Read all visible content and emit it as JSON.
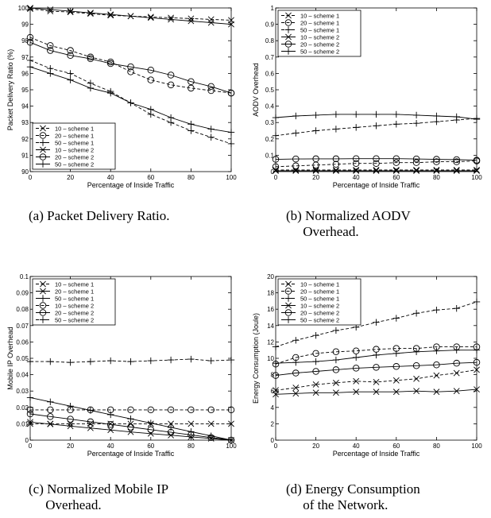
{
  "chart_data": [
    {
      "type": "line",
      "panel": "a",
      "caption": "(a) Packet Delivery Ratio.",
      "xlabel": "Percentage of Inside Traffic",
      "ylabel": "Packet Delivery Ratio (%)",
      "xlim": [
        0,
        100
      ],
      "ylim": [
        90,
        100
      ],
      "xticks": [
        "0",
        "20",
        "40",
        "60",
        "80",
        "100"
      ],
      "yticks": [
        "90",
        "91",
        "92",
        "93",
        "94",
        "95",
        "96",
        "97",
        "98",
        "99",
        "100"
      ],
      "legend_position": "bottom-left",
      "x": [
        0,
        10,
        20,
        30,
        40,
        50,
        60,
        70,
        80,
        90,
        100
      ],
      "series": [
        {
          "name": "10 – scheme 1",
          "marker": "x",
          "dash": true,
          "values": [
            99.95,
            99.8,
            99.75,
            99.65,
            99.55,
            99.5,
            99.45,
            99.4,
            99.35,
            99.3,
            99.25
          ]
        },
        {
          "name": "20 – scheme 1",
          "marker": "o",
          "dash": true,
          "values": [
            98.2,
            97.7,
            97.4,
            97.0,
            96.7,
            96.1,
            95.6,
            95.3,
            95.1,
            94.95,
            94.8
          ]
        },
        {
          "name": "50 – scheme 1",
          "marker": "+",
          "dash": true,
          "values": [
            96.8,
            96.3,
            96.0,
            95.4,
            94.9,
            94.2,
            93.5,
            93.0,
            92.5,
            92.1,
            91.7
          ]
        },
        {
          "name": "10 – scheme 2",
          "marker": "x",
          "dash": false,
          "values": [
            100.0,
            99.9,
            99.8,
            99.7,
            99.6,
            99.5,
            99.4,
            99.3,
            99.2,
            99.1,
            99.0
          ]
        },
        {
          "name": "20 – scheme 2",
          "marker": "o",
          "dash": false,
          "values": [
            97.9,
            97.4,
            97.1,
            96.9,
            96.6,
            96.4,
            96.2,
            95.9,
            95.5,
            95.2,
            94.8
          ]
        },
        {
          "name": "50 – scheme 2",
          "marker": "+",
          "dash": false,
          "values": [
            96.4,
            96.0,
            95.6,
            95.1,
            94.8,
            94.2,
            93.8,
            93.3,
            92.9,
            92.6,
            92.4
          ]
        }
      ]
    },
    {
      "type": "line",
      "panel": "b",
      "caption": "(b) Normalized AODV\n     Overhead.",
      "xlabel": "Percentage of Inside Traffic",
      "ylabel": "AODV Overhead",
      "xlim": [
        0,
        100
      ],
      "ylim": [
        0,
        1
      ],
      "xticks": [
        "0",
        "20",
        "40",
        "60",
        "80",
        "100"
      ],
      "yticks": [
        "0",
        "0.1",
        "0.2",
        "0.3",
        "0.4",
        "0.5",
        "0.6",
        "0.7",
        "0.8",
        "0.9",
        "1"
      ],
      "legend_position": "top-left",
      "x": [
        0,
        10,
        20,
        30,
        40,
        50,
        60,
        70,
        80,
        90,
        100
      ],
      "series": [
        {
          "name": "10 – scheme 1",
          "marker": "x",
          "dash": true,
          "values": [
            0.01,
            0.01,
            0.01,
            0.01,
            0.01,
            0.01,
            0.01,
            0.01,
            0.01,
            0.01,
            0.01
          ]
        },
        {
          "name": "20 – scheme 1",
          "marker": "o",
          "dash": true,
          "values": [
            0.03,
            0.035,
            0.04,
            0.045,
            0.05,
            0.05,
            0.055,
            0.055,
            0.06,
            0.06,
            0.065
          ]
        },
        {
          "name": "50 – scheme 1",
          "marker": "+",
          "dash": true,
          "values": [
            0.22,
            0.235,
            0.25,
            0.26,
            0.27,
            0.28,
            0.29,
            0.295,
            0.305,
            0.315,
            0.325
          ]
        },
        {
          "name": "10 – scheme 2",
          "marker": "x",
          "dash": false,
          "values": [
            0.005,
            0.005,
            0.005,
            0.005,
            0.005,
            0.005,
            0.005,
            0.005,
            0.005,
            0.005,
            0.005
          ]
        },
        {
          "name": "20 – scheme 2",
          "marker": "o",
          "dash": false,
          "values": [
            0.075,
            0.077,
            0.078,
            0.078,
            0.079,
            0.079,
            0.079,
            0.077,
            0.075,
            0.073,
            0.07
          ]
        },
        {
          "name": "50 – scheme 2",
          "marker": "+",
          "dash": false,
          "values": [
            0.33,
            0.34,
            0.345,
            0.35,
            0.35,
            0.35,
            0.35,
            0.345,
            0.34,
            0.335,
            0.32
          ]
        }
      ]
    },
    {
      "type": "line",
      "panel": "c",
      "caption": "(c) Normalized Mobile IP\n     Overhead.",
      "xlabel": "Percentage of Inside Traffic",
      "ylabel": "Mobile IP Overhead",
      "xlim": [
        0,
        100
      ],
      "ylim": [
        0,
        0.1
      ],
      "xticks": [
        "0",
        "20",
        "40",
        "60",
        "80",
        "100"
      ],
      "yticks": [
        "0",
        "0.01",
        "0.02",
        "0.03",
        "0.04",
        "0.05",
        "0.06",
        "0.07",
        "0.08",
        "0.09",
        "0.1"
      ],
      "legend_position": "top-left",
      "x": [
        0,
        10,
        20,
        30,
        40,
        50,
        60,
        70,
        80,
        90,
        100
      ],
      "series": [
        {
          "name": "10 – scheme 1",
          "marker": "x",
          "dash": true,
          "values": [
            0.01,
            0.01,
            0.01,
            0.01,
            0.01,
            0.01,
            0.01,
            0.01,
            0.01,
            0.01,
            0.01
          ]
        },
        {
          "name": "20 – scheme 1",
          "marker": "x",
          "dash": false,
          "values": [
            0.011,
            0.0098,
            0.0086,
            0.0074,
            0.0062,
            0.005,
            0.004,
            0.003,
            0.002,
            0.001,
            0.0
          ]
        },
        {
          "name": "50 – scheme 1",
          "marker": "+",
          "dash": false,
          "values": [
            0.026,
            0.0234,
            0.0208,
            0.0182,
            0.0156,
            0.013,
            0.0104,
            0.0078,
            0.0052,
            0.0026,
            0.0
          ]
        },
        {
          "name": "10 – scheme 2",
          "marker": "o",
          "dash": true,
          "values": [
            0.0185,
            0.0185,
            0.0185,
            0.0185,
            0.0185,
            0.0185,
            0.0185,
            0.0185,
            0.0185,
            0.0185,
            0.0185
          ]
        },
        {
          "name": "20 – scheme 2",
          "marker": "o",
          "dash": false,
          "values": [
            0.016,
            0.0144,
            0.0128,
            0.0112,
            0.0096,
            0.008,
            0.0064,
            0.0048,
            0.0032,
            0.0016,
            0.0
          ]
        },
        {
          "name": "50 – scheme 2",
          "marker": "+",
          "dash": true,
          "values": [
            0.048,
            0.048,
            0.0475,
            0.048,
            0.0485,
            0.048,
            0.0485,
            0.049,
            0.0495,
            0.0485,
            0.049
          ]
        }
      ]
    },
    {
      "type": "line",
      "panel": "d",
      "caption": "(d) Energy Consumption\n     of the Network.",
      "xlabel": "Percentage of Inside Traffic",
      "ylabel": "Energy Consumption (Joule)",
      "xlim": [
        0,
        100
      ],
      "ylim": [
        0,
        20
      ],
      "xticks": [
        "0",
        "20",
        "40",
        "60",
        "80",
        "100"
      ],
      "yticks": [
        "0",
        "2",
        "4",
        "6",
        "8",
        "10",
        "12",
        "14",
        "16",
        "18",
        "20"
      ],
      "legend_position": "top-left",
      "x": [
        0,
        10,
        20,
        30,
        40,
        50,
        60,
        70,
        80,
        90,
        100
      ],
      "series": [
        {
          "name": "10 – scheme 1",
          "marker": "x",
          "dash": true,
          "values": [
            6.1,
            6.4,
            6.8,
            7.0,
            7.2,
            7.1,
            7.3,
            7.5,
            7.9,
            8.2,
            8.6
          ]
        },
        {
          "name": "20 – scheme 1",
          "marker": "o",
          "dash": true,
          "values": [
            9.3,
            10.1,
            10.6,
            10.8,
            10.9,
            11.1,
            11.2,
            11.2,
            11.4,
            11.4,
            11.4
          ]
        },
        {
          "name": "50 – scheme 1",
          "marker": "+",
          "dash": true,
          "values": [
            11.4,
            12.2,
            12.8,
            13.4,
            13.8,
            14.4,
            14.9,
            15.5,
            15.9,
            16.1,
            16.9
          ]
        },
        {
          "name": "10 – scheme 2",
          "marker": "x",
          "dash": false,
          "values": [
            5.6,
            5.7,
            5.8,
            5.8,
            5.9,
            5.9,
            5.9,
            6.0,
            5.9,
            6.0,
            6.2
          ]
        },
        {
          "name": "20 – scheme 2",
          "marker": "o",
          "dash": false,
          "values": [
            7.9,
            8.2,
            8.4,
            8.6,
            8.8,
            8.9,
            9.0,
            9.1,
            9.2,
            9.4,
            9.5
          ]
        },
        {
          "name": "50 – scheme 2",
          "marker": "+",
          "dash": false,
          "values": [
            9.4,
            9.5,
            9.6,
            9.8,
            10.1,
            10.4,
            10.6,
            10.8,
            10.9,
            11.0,
            11.0
          ]
        }
      ]
    }
  ]
}
